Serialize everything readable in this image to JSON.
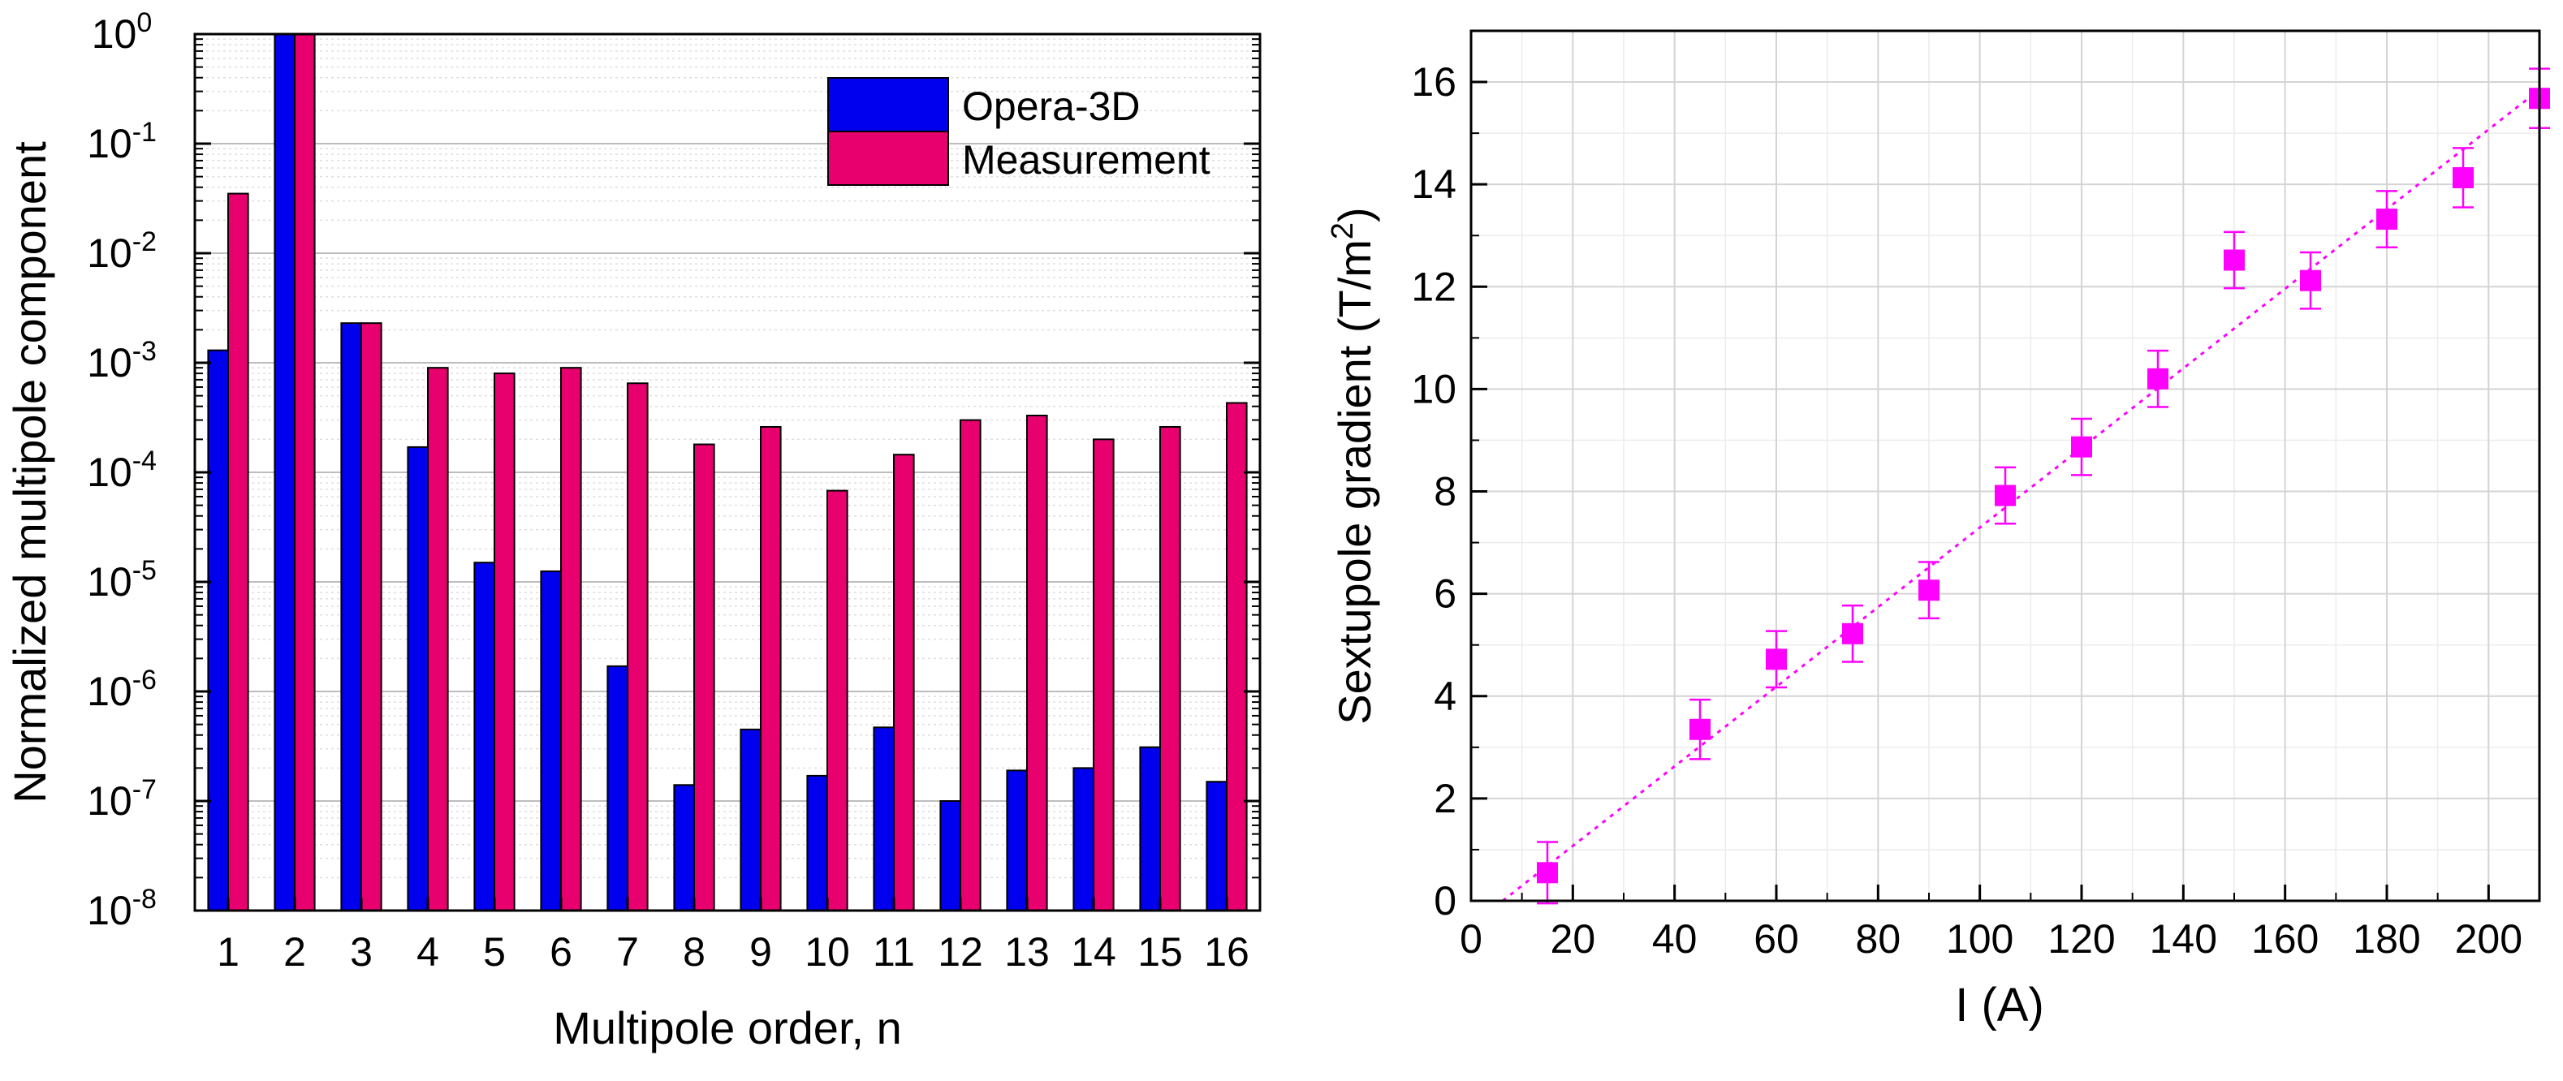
{
  "chart_data": [
    {
      "type": "bar",
      "yscale": "log",
      "xlabel": "Multipole order, n",
      "ylabel": "Normalized multipole component",
      "ylim": [
        1e-08,
        1
      ],
      "y_ticks": [
        {
          "value": 1e-08,
          "base": "10",
          "exp": "-8"
        },
        {
          "value": 1e-07,
          "base": "10",
          "exp": "-7"
        },
        {
          "value": 1e-06,
          "base": "10",
          "exp": "-6"
        },
        {
          "value": 1e-05,
          "base": "10",
          "exp": "-5"
        },
        {
          "value": 0.0001,
          "base": "10",
          "exp": "-4"
        },
        {
          "value": 0.001,
          "base": "10",
          "exp": "-3"
        },
        {
          "value": 0.01,
          "base": "10",
          "exp": "-2"
        },
        {
          "value": 0.1,
          "base": "10",
          "exp": "-1"
        },
        {
          "value": 1,
          "base": "10",
          "exp": "0"
        }
      ],
      "categories": [
        "1",
        "2",
        "3",
        "4",
        "5",
        "6",
        "7",
        "8",
        "9",
        "10",
        "11",
        "12",
        "13",
        "14",
        "15",
        "16"
      ],
      "series": [
        {
          "name": "Opera-3D",
          "color": "#0000ee",
          "values": [
            0.0013,
            1.0,
            0.0023,
            0.00017,
            1.5e-05,
            1.25e-05,
            1.7e-06,
            1.4e-07,
            4.5e-07,
            1.7e-07,
            4.7e-07,
            1e-07,
            1.9e-07,
            2e-07,
            3.1e-07,
            1.5e-07
          ]
        },
        {
          "name": "Measurement",
          "color": "#e8006e",
          "values": [
            0.035,
            1.0,
            0.0023,
            0.0009,
            0.0008,
            0.0009,
            0.00065,
            0.00018,
            0.00026,
            6.8e-05,
            0.000145,
            0.0003,
            0.00033,
            0.0002,
            0.00026,
            0.00043
          ]
        }
      ],
      "legend_position": "top-right",
      "grid": true
    },
    {
      "type": "scatter",
      "xlabel": "I (A)",
      "ylabel_main": "Sextupole gradient (T/m",
      "ylabel_sup": "2",
      "ylabel_close": ")",
      "xlim": [
        0,
        210
      ],
      "ylim": [
        0,
        17
      ],
      "x_ticks": [
        "0",
        "20",
        "40",
        "60",
        "80",
        "100",
        "120",
        "140",
        "160",
        "180",
        "200"
      ],
      "y_ticks": [
        "0",
        "2",
        "4",
        "6",
        "8",
        "10",
        "12",
        "14",
        "16"
      ],
      "x_tick_values": [
        0,
        20,
        40,
        60,
        80,
        100,
        120,
        140,
        160,
        180,
        200
      ],
      "y_tick_values": [
        0,
        2,
        4,
        6,
        8,
        10,
        12,
        14,
        16
      ],
      "color": "#ff00ff",
      "points": [
        {
          "x": 15,
          "y": 0.55,
          "err": 0.6
        },
        {
          "x": 45,
          "y": 3.35,
          "err": 0.58
        },
        {
          "x": 60,
          "y": 4.72,
          "err": 0.55
        },
        {
          "x": 75,
          "y": 5.22,
          "err": 0.55
        },
        {
          "x": 90,
          "y": 6.07,
          "err": 0.55
        },
        {
          "x": 105,
          "y": 7.92,
          "err": 0.55
        },
        {
          "x": 120,
          "y": 8.87,
          "err": 0.55
        },
        {
          "x": 135,
          "y": 10.2,
          "err": 0.55
        },
        {
          "x": 150,
          "y": 12.52,
          "err": 0.55
        },
        {
          "x": 165,
          "y": 12.12,
          "err": 0.55
        },
        {
          "x": 180,
          "y": 13.32,
          "err": 0.55
        },
        {
          "x": 195,
          "y": 14.13,
          "err": 0.58
        },
        {
          "x": 210,
          "y": 15.68,
          "err": 0.58
        }
      ],
      "fit_line": {
        "x": [
          6.2,
          210
        ],
        "y": [
          0,
          15.85
        ]
      },
      "grid": true
    }
  ]
}
